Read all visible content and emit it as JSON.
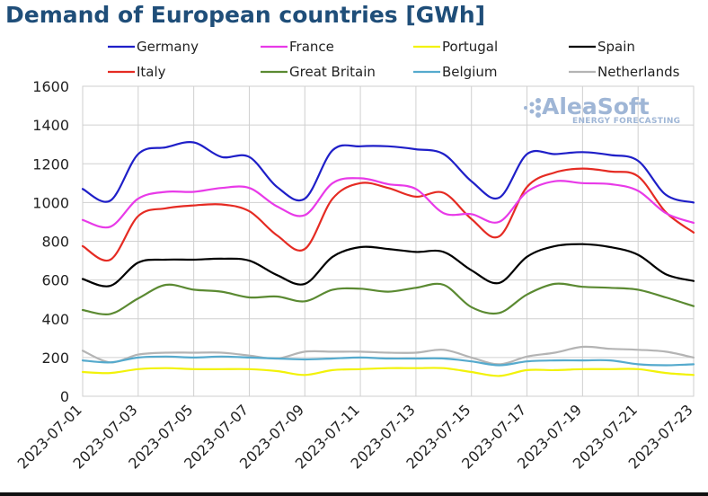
{
  "chart_data": {
    "type": "line",
    "title": "Demand of European countries [GWh]",
    "xlabel": "",
    "ylabel": "",
    "ylim": [
      0,
      1600
    ],
    "yticks": [
      0,
      200,
      400,
      600,
      800,
      1000,
      1200,
      1400,
      1600
    ],
    "grid": true,
    "legend_position": "top",
    "x": [
      "2023-07-01",
      "2023-07-02",
      "2023-07-03",
      "2023-07-04",
      "2023-07-05",
      "2023-07-06",
      "2023-07-07",
      "2023-07-08",
      "2023-07-09",
      "2023-07-10",
      "2023-07-11",
      "2023-07-12",
      "2023-07-13",
      "2023-07-14",
      "2023-07-15",
      "2023-07-16",
      "2023-07-17",
      "2023-07-18",
      "2023-07-19",
      "2023-07-20",
      "2023-07-21",
      "2023-07-22",
      "2023-07-23"
    ],
    "xtick_labels": [
      "2023-07-01",
      "2023-07-03",
      "2023-07-05",
      "2023-07-07",
      "2023-07-09",
      "2023-07-11",
      "2023-07-13",
      "2023-07-15",
      "2023-07-17",
      "2023-07-19",
      "2023-07-21",
      "2023-07-23"
    ],
    "series": [
      {
        "name": "Germany",
        "color": "#1f1fc8",
        "values": [
          1070,
          1010,
          1250,
          1285,
          1310,
          1235,
          1235,
          1080,
          1020,
          1270,
          1290,
          1290,
          1275,
          1250,
          1110,
          1025,
          1250,
          1250,
          1260,
          1245,
          1215,
          1040,
          1000
        ]
      },
      {
        "name": "France",
        "color": "#e83ae8",
        "values": [
          910,
          875,
          1020,
          1055,
          1055,
          1075,
          1075,
          980,
          935,
          1100,
          1125,
          1095,
          1070,
          945,
          940,
          900,
          1055,
          1110,
          1100,
          1095,
          1060,
          945,
          895
        ]
      },
      {
        "name": "Portugal",
        "color": "#f2f20a",
        "values": [
          125,
          120,
          140,
          145,
          140,
          140,
          140,
          130,
          110,
          135,
          140,
          145,
          145,
          145,
          125,
          105,
          135,
          135,
          140,
          140,
          140,
          120,
          110
        ]
      },
      {
        "name": "Spain",
        "color": "#000000",
        "values": [
          605,
          570,
          690,
          705,
          705,
          710,
          700,
          625,
          580,
          720,
          770,
          760,
          745,
          745,
          650,
          585,
          720,
          775,
          785,
          770,
          730,
          630,
          595
        ]
      },
      {
        "name": "Italy",
        "color": "#e52b23",
        "values": [
          775,
          705,
          930,
          970,
          985,
          990,
          955,
          830,
          760,
          1020,
          1100,
          1075,
          1030,
          1050,
          915,
          825,
          1080,
          1155,
          1175,
          1160,
          1135,
          950,
          845
        ]
      },
      {
        "name": "Great Britain",
        "color": "#5b8a32",
        "values": [
          445,
          425,
          505,
          575,
          550,
          540,
          510,
          515,
          490,
          550,
          555,
          540,
          560,
          575,
          460,
          430,
          525,
          580,
          565,
          560,
          550,
          510,
          465
        ]
      },
      {
        "name": "Belgium",
        "color": "#55aacd",
        "values": [
          185,
          175,
          200,
          205,
          200,
          205,
          200,
          195,
          190,
          195,
          200,
          195,
          195,
          195,
          180,
          160,
          180,
          185,
          185,
          185,
          165,
          160,
          165
        ]
      },
      {
        "name": "Netherlands",
        "color": "#b4b4b4",
        "values": [
          235,
          175,
          215,
          225,
          225,
          225,
          210,
          195,
          230,
          230,
          230,
          225,
          225,
          240,
          200,
          165,
          205,
          225,
          255,
          245,
          240,
          230,
          200
        ]
      }
    ]
  },
  "watermark": {
    "brand": "AleaSoft",
    "tagline": "ENERGY FORECASTING",
    "brand_color": "#9fb6d6"
  }
}
